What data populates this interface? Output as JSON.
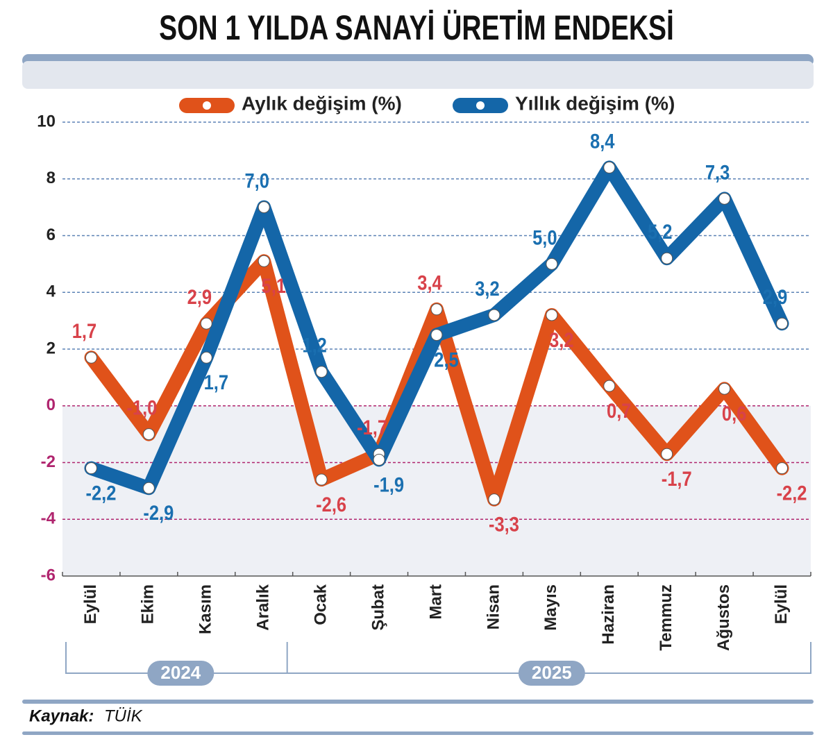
{
  "chart_data": {
    "type": "line",
    "title": "SON 1 YILDA SANAYİ ÜRETİM ENDEKSİ",
    "categories": [
      "Eylül",
      "Ekim",
      "Kasım",
      "Aralık",
      "Ocak",
      "Şubat",
      "Mart",
      "Nisan",
      "Mayıs",
      "Haziran",
      "Temmuz",
      "Ağustos",
      "Eylül"
    ],
    "year_groups": [
      "2024",
      "2025"
    ],
    "series": [
      {
        "name": "Aylık değişim (%)",
        "color": "#e0521a",
        "label_color": "#d8424a",
        "values": [
          1.7,
          -1.0,
          2.9,
          5.1,
          -2.6,
          -1.7,
          3.4,
          -3.3,
          3.2,
          0.7,
          -1.7,
          0.6,
          -2.2
        ],
        "value_labels": [
          "1,7",
          "-1,0",
          "2,9",
          "5,1",
          "-2,6",
          "-1,7",
          "3,4",
          "-3,3",
          "3,2",
          "0,7",
          "-1,7",
          "0,6",
          "-2,2"
        ]
      },
      {
        "name": "Yıllık değişim (%)",
        "color": "#1466a8",
        "label_color": "#1a6fb0",
        "values": [
          -2.2,
          -2.9,
          1.7,
          7.0,
          1.2,
          -1.9,
          2.5,
          3.2,
          5.0,
          8.4,
          5.2,
          7.3,
          2.9
        ],
        "value_labels": [
          "-2,2",
          "-2,9",
          "1,7",
          "7,0",
          "1,2",
          "-1,9",
          "2,5",
          "3,2",
          "5,0",
          "8,4",
          "5,2",
          "7,3",
          "2,9"
        ]
      }
    ],
    "ylim": [
      -6,
      10
    ],
    "yticks": [
      -6,
      -4,
      -2,
      0,
      2,
      4,
      6,
      8,
      10
    ],
    "grid": true,
    "source_label": "Kaynak:",
    "source": "TÜİK"
  }
}
